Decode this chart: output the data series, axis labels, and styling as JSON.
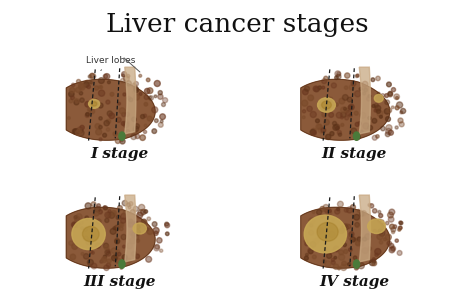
{
  "title": "Liver cancer stages",
  "title_fontsize": 19,
  "annotation_label": "Liver lobes",
  "stage_labels": [
    "I stage",
    "II stage",
    "III stage",
    "IV stage"
  ],
  "stage_label_fontsize": 11,
  "background_color": "#ffffff",
  "liver_base": "#8B5A3A",
  "liver_dark": "#5C3218",
  "liver_mid": "#7A4A2A",
  "liver_light": "#A06840",
  "membrane_color": "#C8A882",
  "gallbladder_color": "#4A7A3A",
  "lobe_line_color": "#1a1a1a",
  "tumor_color": "#C8A855",
  "tumor_dark": "#A07820",
  "annotation_color": "#333333",
  "annotation_fontsize": 6.5
}
